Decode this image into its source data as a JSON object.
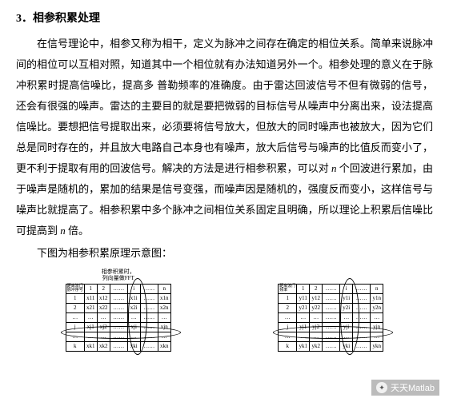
{
  "section": {
    "number": "3．",
    "title": "相参积累处理"
  },
  "paragraph": "在信号理论中，相参又称为相干，定义为脉冲之间存在确定的相位关系。简单来说脉冲间的相位可以互相对照，知道其中一个相位就有办法知道另外一个。相参处理的意义在于脉冲积累时提高信噪比，提高多 普勒频率的准确度。由于雷达回波信号不但有微弱的信号，还会有很强的噪声。雷达的主要目的就是要把微弱的目标信号从噪声中分离出来，设法提高信噪比。要想把信号提取出来，必须要将信号放大，但放大的同时噪声也被放大，因为它们总是同时存在的，并且放大电路自己本身也有噪声，放大后信号与噪声的比值反而变小了，更不利于提取有用的回波信号。解决的方法是进行相参积累，可以对 n 个回波进行累加，由于噪声是随机的，累加的结果是信号变强，而噪声因是随机的，强度反而变小，这样信号与噪声比就提高了。相参积累中多个脉冲之间相位关系固定且明确，所以理论上积累后信噪比可提高到 n 倍。",
  "caption": "下图为相参积累原理示意图：",
  "left_table": {
    "title_line1": "相参积累时，",
    "title_line2": "列向量做FFT",
    "corner_top": "距离波门",
    "corner_side": "脉冲序号",
    "col_headers": [
      "1",
      "2",
      "……",
      "i",
      "……",
      "n"
    ],
    "rows": [
      [
        "1",
        "x11",
        "x12",
        "……",
        "x1i",
        "……",
        "x1n"
      ],
      [
        "2",
        "x21",
        "x22",
        "……",
        "x2i",
        "……",
        "x2n"
      ],
      [
        "…",
        "…",
        "…",
        "……",
        "…",
        "……",
        "…"
      ],
      [
        "j",
        "xj1",
        "xj2",
        "……",
        "xji",
        "……",
        "xjn"
      ],
      [
        "…",
        "…",
        "…",
        "……",
        "…",
        "……",
        "…"
      ],
      [
        "k",
        "xk1",
        "xk2",
        "……",
        "xki",
        "……",
        "xkn"
      ]
    ]
  },
  "right_table": {
    "corner_top": "距离波门",
    "corner_side": "频率",
    "col_headers": [
      "1",
      "2",
      "……",
      "i",
      "……",
      "n"
    ],
    "rows": [
      [
        "1",
        "y11",
        "y12",
        "……",
        "y1i",
        "……",
        "y1n"
      ],
      [
        "2",
        "y21",
        "y22",
        "……",
        "y2i",
        "……",
        "y2n"
      ],
      [
        "…",
        "…",
        "…",
        "……",
        "…",
        "……",
        "…"
      ],
      [
        "j",
        "yj1",
        "yj2",
        "……",
        "yji",
        "……",
        "yjn"
      ],
      [
        "…",
        "…",
        "…",
        "……",
        "…",
        "……",
        "…"
      ],
      [
        "k",
        "yk1",
        "yk2",
        "……",
        "yki",
        "……",
        "ykn"
      ]
    ]
  },
  "watermark": "天天Matlab",
  "colors": {
    "text": "#000000",
    "bg": "#ffffff",
    "border": "#000000"
  }
}
